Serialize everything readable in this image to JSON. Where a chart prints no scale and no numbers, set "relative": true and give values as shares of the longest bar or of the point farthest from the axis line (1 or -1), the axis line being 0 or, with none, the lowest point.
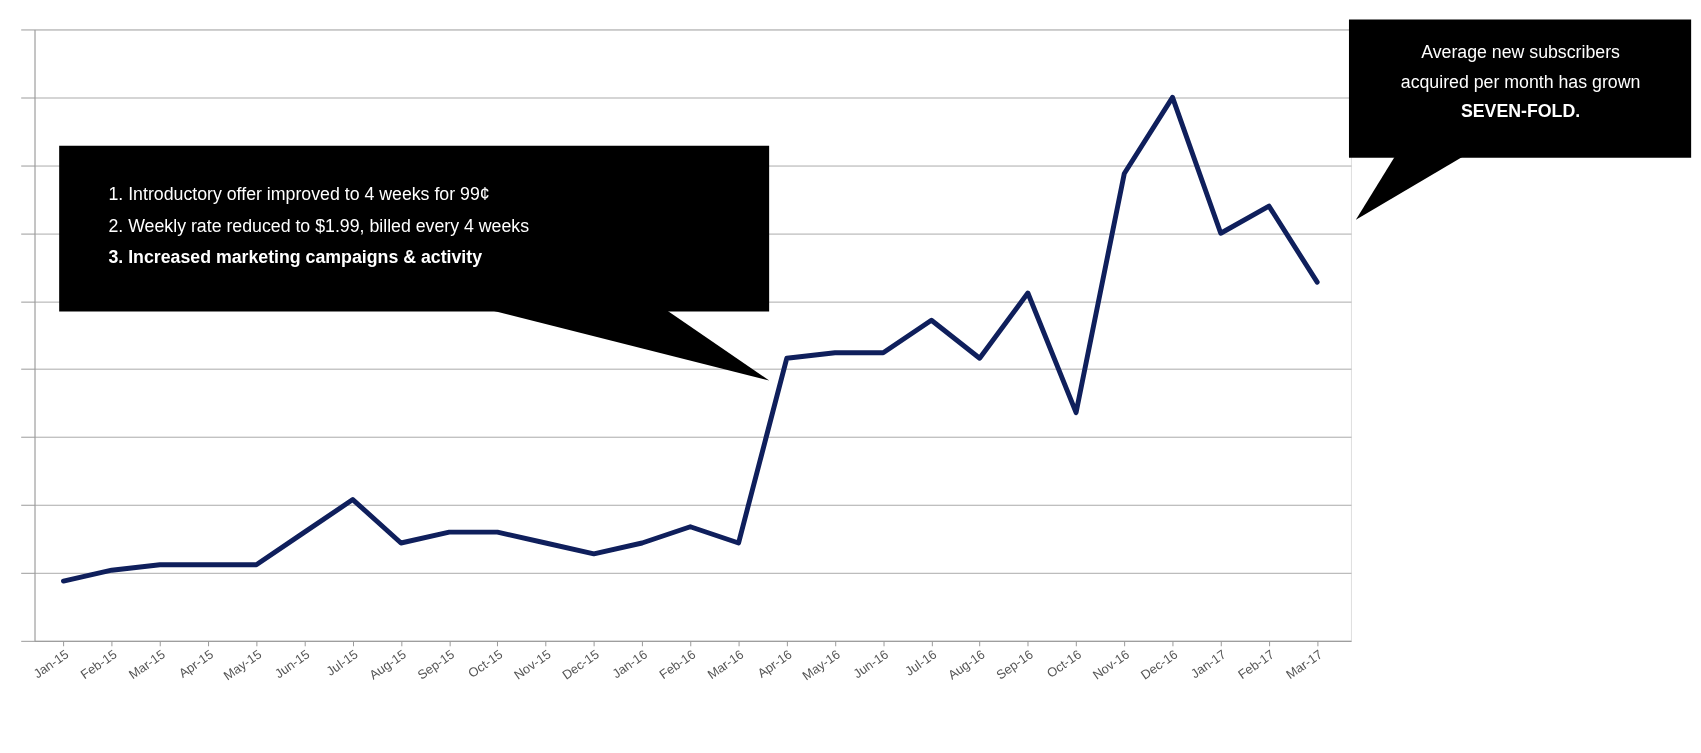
{
  "chart_data": {
    "type": "line",
    "relative": true,
    "grid": "y",
    "marker": "none",
    "line_style": "solid",
    "categories": [
      "Jan-15",
      "Feb-15",
      "Mar-15",
      "Apr-15",
      "May-15",
      "Jun-15",
      "Jul-15",
      "Aug-15",
      "Sep-15",
      "Oct-15",
      "Nov-15",
      "Dec-15",
      "Jan-16",
      "Feb-16",
      "Mar-16",
      "Apr-16",
      "May-16",
      "Jun-16",
      "Jul-16",
      "Aug-16",
      "Sep-16",
      "Oct-16",
      "Nov-16",
      "Dec-16",
      "Jan-17",
      "Feb-17",
      "Mar-17"
    ],
    "series": [
      {
        "color": "#0f1f5c",
        "values": [
          0.11,
          0.13,
          0.14,
          0.14,
          0.14,
          0.2,
          0.26,
          0.18,
          0.2,
          0.2,
          0.18,
          0.16,
          0.18,
          0.21,
          0.18,
          0.52,
          0.53,
          0.53,
          0.59,
          0.52,
          0.64,
          0.42,
          0.86,
          1,
          0.75,
          0.8,
          0.66
        ]
      }
    ],
    "annotations": [
      "1.    Introductory offer improved to 4 weeks for 99¢",
      "2.    Weekly rate reduced to $1.99, billed every 4 weeks",
      "3.    Increased marketing campaigns & activity",
      "Average new subscribers acquired per month has grown SEVEN-FOLD."
    ]
  }
}
